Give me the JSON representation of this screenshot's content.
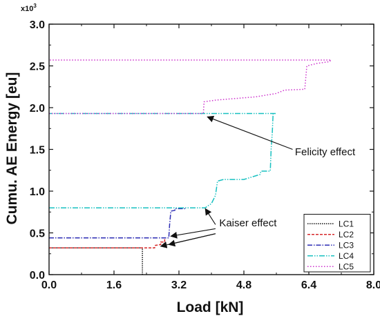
{
  "chart_data": {
    "type": "line",
    "xlabel": "Load [kN]",
    "ylabel": "Cumu. AE Energy [eu]",
    "y_multiplier": "x10",
    "y_multiplier_exp": "3",
    "xlim": [
      0,
      8.0
    ],
    "ylim": [
      0,
      3.0
    ],
    "x_ticks": [
      "0.0",
      "1.6",
      "3.2",
      "4.8",
      "6.4",
      "8.0"
    ],
    "y_ticks": [
      "0.0",
      "0.5",
      "1.0",
      "1.5",
      "2.0",
      "2.5",
      "3.0"
    ],
    "legend_position": "bottom-right",
    "series": [
      {
        "name": "LC1",
        "color": "#111111",
        "dash": "1.5,1.5",
        "points": [
          [
            2.3,
            0.0
          ],
          [
            2.3,
            0.32
          ],
          [
            0.0,
            0.32
          ]
        ]
      },
      {
        "name": "LC2",
        "color": "#d62728",
        "dash": "4,2",
        "points": [
          [
            0.0,
            0.32
          ],
          [
            2.6,
            0.32
          ],
          [
            2.62,
            0.35
          ],
          [
            2.75,
            0.36
          ],
          [
            2.75,
            0.39
          ],
          [
            2.85,
            0.39
          ],
          [
            2.85,
            0.43
          ]
        ]
      },
      {
        "name": "LC3",
        "color": "#2b2bb3",
        "dash": "7,2,1.5,2",
        "points": [
          [
            0.0,
            0.44
          ],
          [
            2.95,
            0.44
          ],
          [
            2.97,
            0.6
          ],
          [
            3.0,
            0.76
          ],
          [
            3.1,
            0.77
          ],
          [
            3.1,
            0.79
          ],
          [
            3.38,
            0.79
          ]
        ]
      },
      {
        "name": "LC4",
        "color": "#17c0c0",
        "dash": "8,2,1.5,2,1.5,2",
        "points": [
          [
            0.0,
            0.8
          ],
          [
            3.85,
            0.8
          ],
          [
            3.9,
            0.82
          ],
          [
            4.0,
            0.85
          ],
          [
            4.1,
            0.95
          ],
          [
            4.15,
            1.12
          ],
          [
            4.3,
            1.14
          ],
          [
            4.8,
            1.14
          ],
          [
            5.2,
            1.2
          ],
          [
            5.22,
            1.24
          ],
          [
            5.45,
            1.24
          ],
          [
            5.47,
            1.5
          ],
          [
            5.5,
            1.7
          ],
          [
            5.52,
            1.93
          ],
          [
            5.6,
            1.93
          ],
          [
            0.0,
            1.93
          ]
        ]
      },
      {
        "name": "LC5",
        "color": "#cc2fcc",
        "dash": "1.5,2.5",
        "points": [
          [
            0.0,
            1.93
          ],
          [
            3.8,
            1.93
          ],
          [
            3.82,
            2.07
          ],
          [
            4.1,
            2.09
          ],
          [
            5.1,
            2.13
          ],
          [
            5.6,
            2.17
          ],
          [
            5.8,
            2.21
          ],
          [
            6.3,
            2.22
          ],
          [
            6.35,
            2.5
          ],
          [
            6.6,
            2.53
          ],
          [
            6.9,
            2.55
          ],
          [
            6.95,
            2.57
          ],
          [
            0.0,
            2.57
          ]
        ]
      }
    ],
    "annotations": [
      {
        "text": "Felicity effect",
        "text_at": [
          6.8,
          1.43
        ],
        "arrow_from": [
          6.0,
          1.5
        ],
        "arrow_to": [
          3.9,
          1.89
        ]
      },
      {
        "text": "Kaiser effect",
        "text_at": [
          4.9,
          0.58
        ],
        "arrows": [
          {
            "from": [
              4.1,
              0.55
            ],
            "to": [
              3.0,
              0.46
            ]
          },
          {
            "from": [
              4.1,
              0.49
            ],
            "to": [
              2.95,
              0.36
            ]
          },
          {
            "from": [
              4.1,
              0.49
            ],
            "to": [
              2.75,
              0.34
            ]
          }
        ]
      },
      {
        "text": "",
        "arrows": [
          {
            "from": [
              4.1,
              0.6
            ],
            "to": [
              3.85,
              0.79
            ]
          }
        ]
      }
    ]
  }
}
